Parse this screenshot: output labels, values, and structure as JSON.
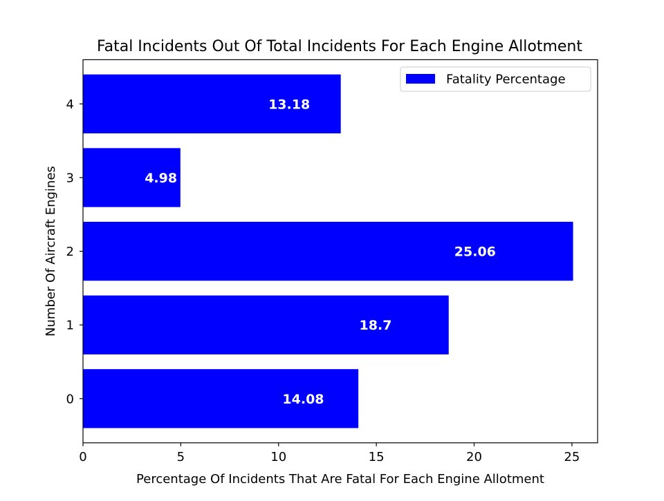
{
  "chart_data": {
    "type": "bar",
    "orientation": "horizontal",
    "title": "Fatal Incidents Out Of Total Incidents For Each Engine Allotment",
    "xlabel": "Percentage Of Incidents That Are Fatal For Each Engine Allotment",
    "ylabel": "Number Of Aircraft Engines",
    "categories": [
      "0",
      "1",
      "2",
      "3",
      "4"
    ],
    "series": [
      {
        "name": "Fatality Percentage",
        "values": [
          14.08,
          18.7,
          25.06,
          4.98,
          13.18
        ],
        "color": "#0000ff"
      }
    ],
    "data_labels": [
      "14.08",
      "18.7",
      "25.06",
      "4.98",
      "13.18"
    ],
    "xlim": [
      0,
      26.313
    ],
    "xticks": [
      0,
      5,
      10,
      15,
      20,
      25
    ],
    "xtick_labels": [
      "0",
      "5",
      "10",
      "15",
      "20",
      "25"
    ],
    "ylim": [
      -0.6,
      4.6
    ],
    "grid": false,
    "legend_position": "top-right"
  }
}
